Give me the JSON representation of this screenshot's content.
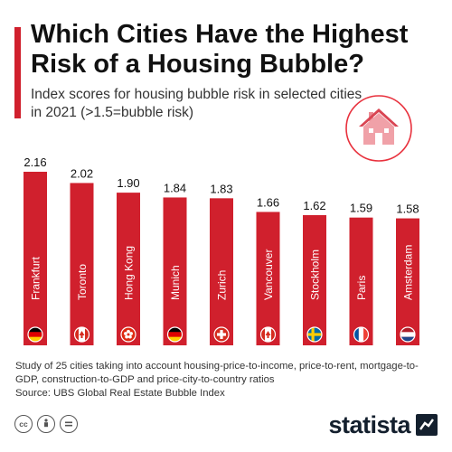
{
  "title": "Which Cities Have the Highest Risk of a Housing Bubble?",
  "subtitle": "Index scores for housing bubble risk in selected cities in 2021 (>1.5=bubble risk)",
  "footnote": {
    "study": "Study of 25 cities taking into account housing-price-to-income, price-to-rent, mortgage-to-GDP, construction-to-GDP and price-city-to-country ratios",
    "source": "Source: UBS Global Real Estate Bubble Index"
  },
  "brand": {
    "name": "statista"
  },
  "license_icons": [
    "cc-icon",
    "by-icon",
    "nd-icon"
  ],
  "colors": {
    "accent": "#d0202d",
    "bar": "#d0202d",
    "brand": "#14202e"
  },
  "chart_data": {
    "type": "bar",
    "title": "Which Cities Have the Highest Risk of a Housing Bubble?",
    "subtitle": "Index scores for housing bubble risk in selected cities in 2021 (>1.5=bubble risk)",
    "categories": [
      "Frankfurt",
      "Toronto",
      "Hong Kong",
      "Munich",
      "Zurich",
      "Vancouver",
      "Stockholm",
      "Paris",
      "Amsterdam"
    ],
    "value_labels": [
      "2.16",
      "2.02",
      "1.90",
      "1.84",
      "1.83",
      "1.66",
      "1.62",
      "1.59",
      "1.58"
    ],
    "values": [
      2.16,
      2.02,
      1.9,
      1.84,
      1.83,
      1.66,
      1.62,
      1.59,
      1.58
    ],
    "flags": [
      "germany-flag-icon",
      "canada-flag-icon",
      "hong-kong-flag-icon",
      "germany-flag-icon",
      "switzerland-flag-icon",
      "canada-flag-icon",
      "sweden-flag-icon",
      "france-flag-icon",
      "netherlands-flag-icon"
    ],
    "ylim": [
      0,
      2.16
    ],
    "grid": false,
    "legend": "none",
    "xlabel": "",
    "ylabel": ""
  }
}
